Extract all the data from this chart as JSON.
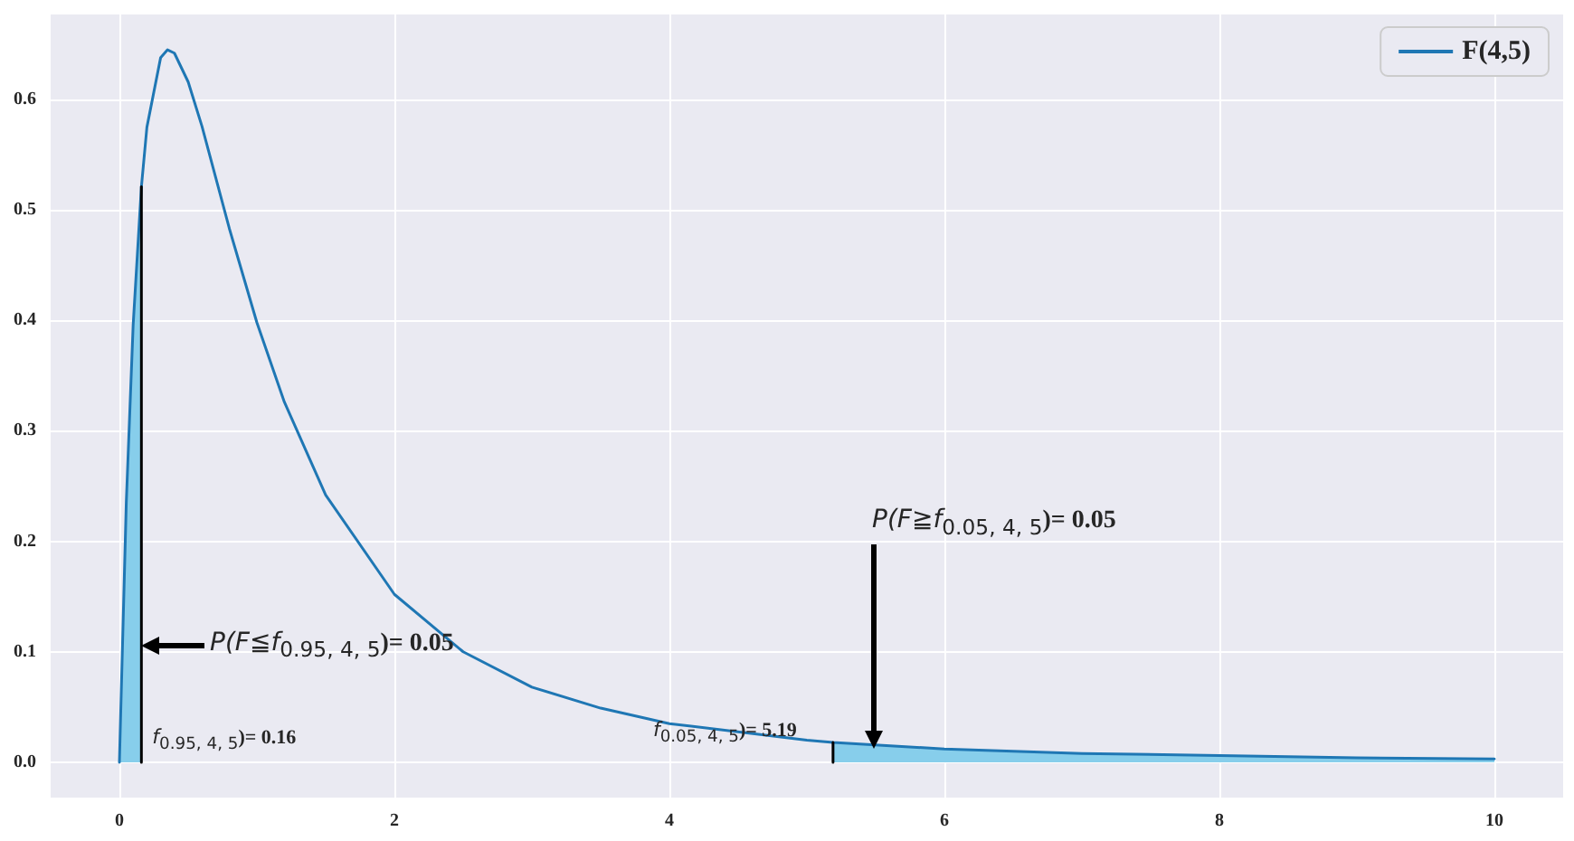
{
  "chart_data": {
    "type": "line",
    "xlim": [
      -0.5,
      10.5
    ],
    "xticks": [
      0,
      2,
      4,
      6,
      8,
      10
    ],
    "ylim": [
      -0.032,
      0.677
    ],
    "yticks": [
      {
        "value": 0,
        "label": "0.0"
      },
      {
        "value": 0.1,
        "label": "0.1"
      },
      {
        "value": 0.2,
        "label": "0.2"
      },
      {
        "value": 0.3,
        "label": "0.3"
      },
      {
        "value": 0.4,
        "label": "0.4"
      },
      {
        "value": 0.5,
        "label": "0.5"
      },
      {
        "value": 0.6,
        "label": "0.6"
      }
    ],
    "series": [
      {
        "type": "area",
        "color": "#87ceeb",
        "x": [
          0,
          0.05,
          0.1,
          0.16
        ],
        "values": [
          0,
          0.235,
          0.396,
          0.521
        ]
      },
      {
        "type": "area",
        "color": "#87ceeb",
        "x": [
          5.19,
          6,
          7,
          8,
          9,
          10
        ],
        "values": [
          0.018,
          0.012,
          0.008,
          0.006,
          0.004,
          0.003
        ]
      },
      {
        "name": "F(4,5)",
        "color": "#1f77b4",
        "x": [
          0,
          0.05,
          0.1,
          0.16,
          0.2,
          0.3,
          0.35,
          0.4,
          0.5,
          0.6,
          0.8,
          1,
          1.2,
          1.5,
          2,
          2.5,
          3,
          3.5,
          4,
          5,
          5.19,
          6,
          7,
          8,
          9,
          10
        ],
        "values": [
          0,
          0.235,
          0.396,
          0.521,
          0.575,
          0.638,
          0.645,
          0.642,
          0.616,
          0.576,
          0.483,
          0.398,
          0.326,
          0.242,
          0.152,
          0.1,
          0.068,
          0.049,
          0.035,
          0.02,
          0.018,
          0.012,
          0.008,
          0.006,
          0.004,
          0.003
        ]
      },
      {
        "color": "#000000",
        "x": [
          0.16,
          0.16
        ],
        "values": [
          0,
          0.521
        ]
      },
      {
        "color": "#000000",
        "x": [
          5.19,
          5.19
        ],
        "values": [
          0,
          0.018
        ]
      }
    ],
    "annotations": [
      "P(F≦f$_{0.95, 4, 5}$)= 0.05",
      "P(F≧f$_{0.05, 4, 5}$)= 0.05",
      {
        "text": "f$_{0.95, 4, 5}$)= 0.16",
        "x": 0.16,
        "y": 0
      },
      {
        "text": "f$_{0.05, 4, 5}$)= 5.19",
        "x": 5.19,
        "y": 0
      }
    ],
    "grid": true,
    "legend": "top right",
    "marker": "none",
    "line_style": "solid"
  }
}
